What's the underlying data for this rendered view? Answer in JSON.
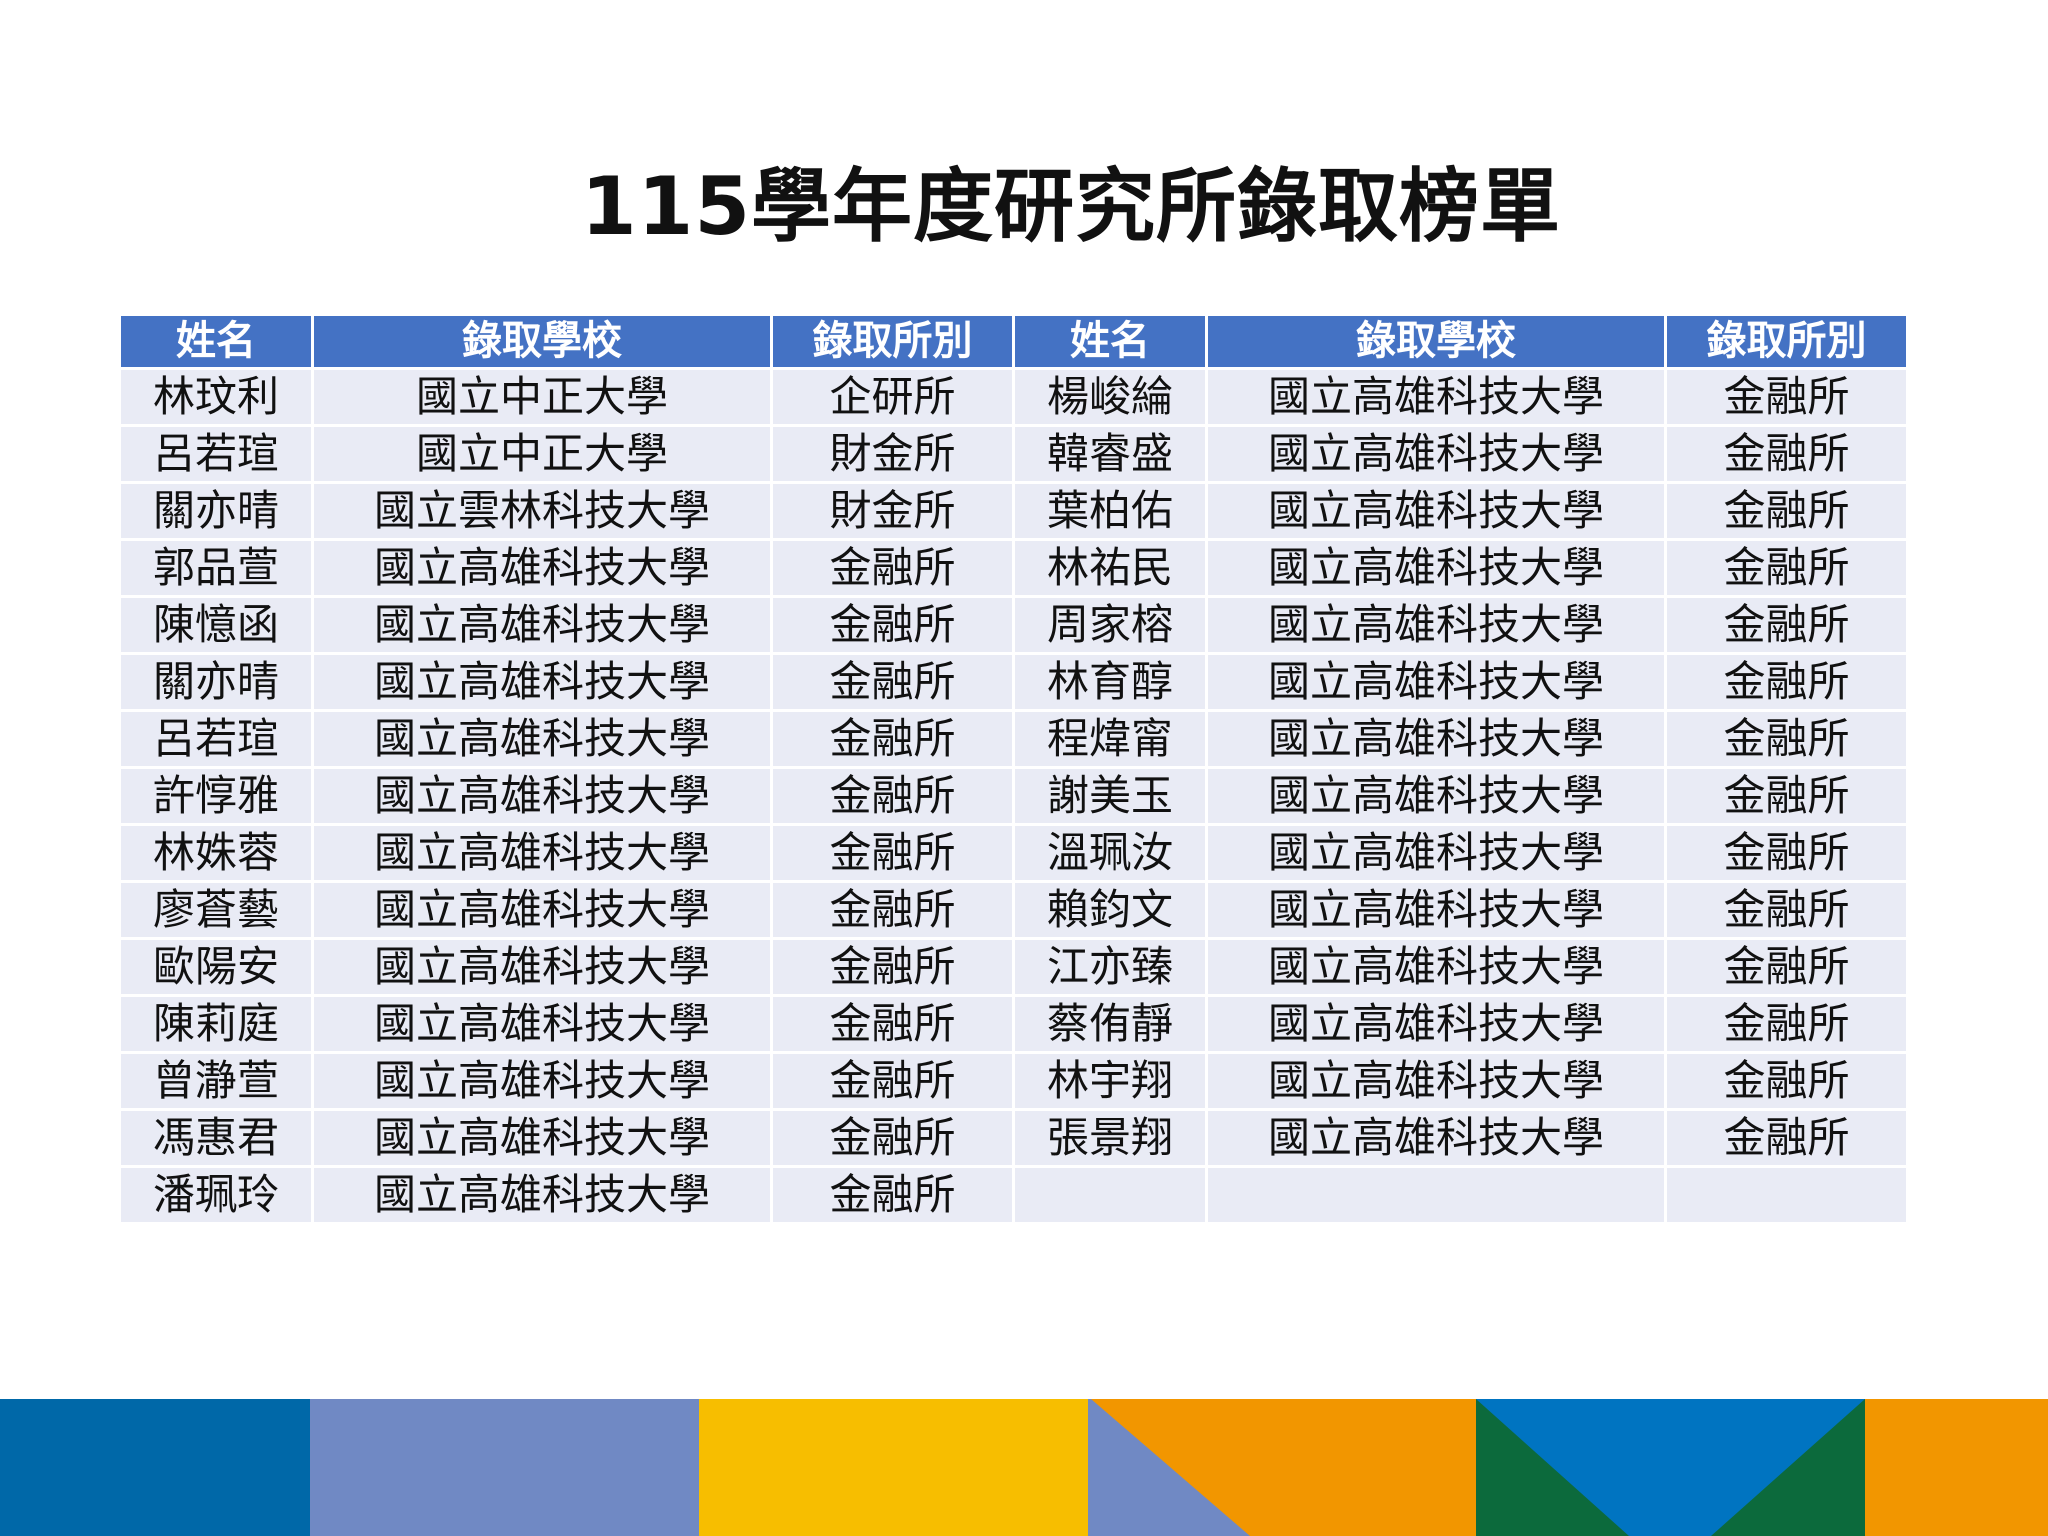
{
  "title": "115學年度研究所錄取榜單",
  "headers": [
    "姓名",
    "錄取學校",
    "錄取所別",
    "姓名",
    "錄取學校",
    "錄取所別"
  ],
  "rows": [
    [
      "林玟利",
      "國立中正大學",
      "企研所",
      "楊峻綸",
      "國立高雄科技大學",
      "金融所"
    ],
    [
      "呂若瑄",
      "國立中正大學",
      "財金所",
      "韓睿盛",
      "國立高雄科技大學",
      "金融所"
    ],
    [
      "關亦晴",
      "國立雲林科技大學",
      "財金所",
      "葉柏佑",
      "國立高雄科技大學",
      "金融所"
    ],
    [
      "郭品萱",
      "國立高雄科技大學",
      "金融所",
      "林祐民",
      "國立高雄科技大學",
      "金融所"
    ],
    [
      "陳憶函",
      "國立高雄科技大學",
      "金融所",
      "周家榕",
      "國立高雄科技大學",
      "金融所"
    ],
    [
      "關亦晴",
      "國立高雄科技大學",
      "金融所",
      "林育醇",
      "國立高雄科技大學",
      "金融所"
    ],
    [
      "呂若瑄",
      "國立高雄科技大學",
      "金融所",
      "程煒甯",
      "國立高雄科技大學",
      "金融所"
    ],
    [
      "許惇雅",
      "國立高雄科技大學",
      "金融所",
      "謝美玉",
      "國立高雄科技大學",
      "金融所"
    ],
    [
      "林姝蓉",
      "國立高雄科技大學",
      "金融所",
      "溫珮汝",
      "國立高雄科技大學",
      "金融所"
    ],
    [
      "廖蒼藝",
      "國立高雄科技大學",
      "金融所",
      "賴鈞文",
      "國立高雄科技大學",
      "金融所"
    ],
    [
      "歐陽安",
      "國立高雄科技大學",
      "金融所",
      "江亦臻",
      "國立高雄科技大學",
      "金融所"
    ],
    [
      "陳莉庭",
      "國立高雄科技大學",
      "金融所",
      "蔡侑靜",
      "國立高雄科技大學",
      "金融所"
    ],
    [
      "曾瀞萱",
      "國立高雄科技大學",
      "金融所",
      "林宇翔",
      "國立高雄科技大學",
      "金融所"
    ],
    [
      "馮惠君",
      "國立高雄科技大學",
      "金融所",
      "張景翔",
      "國立高雄科技大學",
      "金融所"
    ],
    [
      "潘珮玲",
      "國立高雄科技大學",
      "金融所",
      "",
      "",
      ""
    ]
  ],
  "colors": {
    "header_bg": "#4472C4",
    "cell_bg": "#E9EBF5",
    "stripe": [
      "#0068A8",
      "#7089C4",
      "#F7BE00",
      "#F29600",
      "#0C6A3C",
      "#0074C1"
    ]
  }
}
